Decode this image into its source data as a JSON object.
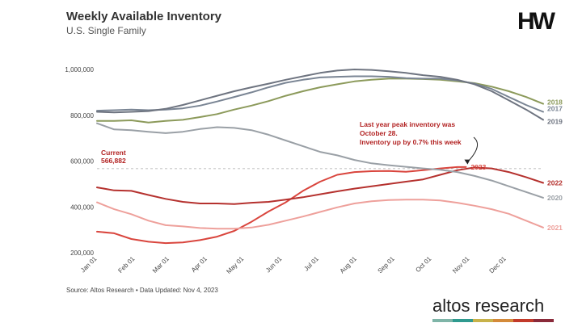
{
  "header": {
    "title": "Weekly Available Inventory",
    "subtitle": "U.S. Single Family",
    "logo": "HW"
  },
  "footer": {
    "source": "Source: Altos Research • Data Updated: Nov 4, 2023",
    "brand_word1": "altos",
    "brand_word2": "research",
    "brand_colors": [
      "#7fb5a8",
      "#2f9a8f",
      "#c8b24a",
      "#d48a3a",
      "#c23a2a",
      "#8a2a3a"
    ]
  },
  "chart_data": {
    "type": "line",
    "xlabel": "",
    "ylabel": "",
    "x_ticks": [
      "Jan 01",
      "Feb 01",
      "Mar 01",
      "Apr 01",
      "May 01",
      "Jun 01",
      "Jul 01",
      "Aug 01",
      "Sep 01",
      "Oct 01",
      "Nov 01",
      "Dec 01"
    ],
    "y_ticks": [
      "200,000",
      "400,000",
      "600,000",
      "800,000",
      "1,000,000"
    ],
    "y_tick_values": [
      200000,
      400000,
      600000,
      800000,
      1000000
    ],
    "xlim": [
      1,
      53
    ],
    "ylim": [
      200000,
      1000000
    ],
    "grid": "none",
    "reference_line": {
      "value": 566882,
      "label_line1": "Current",
      "label_line2": "566,882"
    },
    "annotation": {
      "lines": [
        "Last year peak inventory was",
        "October 28.",
        "Inventory up by 0.7% this week"
      ],
      "target_week": 44,
      "target_value": 575000
    },
    "series": [
      {
        "name": "2018",
        "color": "#8c9a5b",
        "x": [
          1,
          3,
          5,
          7,
          9,
          11,
          13,
          15,
          17,
          19,
          21,
          23,
          25,
          27,
          29,
          31,
          33,
          35,
          37,
          39,
          41,
          43,
          45,
          47,
          49,
          51,
          53
        ],
        "values": [
          775000,
          775000,
          778000,
          768000,
          775000,
          780000,
          792000,
          805000,
          825000,
          842000,
          862000,
          885000,
          905000,
          922000,
          935000,
          948000,
          955000,
          960000,
          960000,
          958000,
          955000,
          948000,
          940000,
          925000,
          905000,
          880000,
          850000
        ]
      },
      {
        "name": "2017",
        "color": "#7a8594",
        "x": [
          1,
          3,
          5,
          7,
          9,
          11,
          13,
          15,
          17,
          19,
          21,
          23,
          25,
          27,
          29,
          31,
          33,
          35,
          37,
          39,
          41,
          43,
          45,
          47,
          49,
          51,
          53
        ],
        "values": [
          820000,
          822000,
          825000,
          822000,
          825000,
          830000,
          842000,
          860000,
          880000,
          900000,
          922000,
          942000,
          955000,
          965000,
          968000,
          970000,
          970000,
          968000,
          962000,
          960000,
          960000,
          952000,
          938000,
          915000,
          880000,
          845000,
          815000
        ]
      },
      {
        "name": "2019",
        "color": "#6e7480",
        "x": [
          1,
          3,
          5,
          7,
          9,
          11,
          13,
          15,
          17,
          19,
          21,
          23,
          25,
          27,
          29,
          31,
          33,
          35,
          37,
          39,
          41,
          43,
          45,
          47,
          49,
          51,
          53
        ],
        "values": [
          815000,
          812000,
          815000,
          818000,
          828000,
          845000,
          865000,
          885000,
          905000,
          922000,
          938000,
          955000,
          970000,
          985000,
          995000,
          1000000,
          998000,
          992000,
          985000,
          975000,
          968000,
          955000,
          935000,
          905000,
          865000,
          825000,
          780000
        ]
      },
      {
        "name": "2023",
        "color": "#d9453d",
        "x": [
          1,
          3,
          5,
          7,
          9,
          11,
          13,
          15,
          17,
          19,
          21,
          23,
          25,
          27,
          29,
          31,
          33,
          35,
          37,
          39,
          41,
          43,
          44
        ],
        "values": [
          292000,
          285000,
          260000,
          248000,
          242000,
          245000,
          255000,
          270000,
          295000,
          335000,
          380000,
          420000,
          470000,
          510000,
          540000,
          552000,
          556000,
          557000,
          553000,
          560000,
          568000,
          574000,
          574000
        ]
      },
      {
        "name": "2022",
        "color": "#b5312e",
        "x": [
          1,
          3,
          5,
          7,
          9,
          11,
          13,
          15,
          17,
          19,
          21,
          23,
          25,
          27,
          29,
          31,
          33,
          35,
          37,
          39,
          41,
          43,
          45,
          47,
          49,
          51,
          53
        ],
        "values": [
          485000,
          472000,
          470000,
          452000,
          435000,
          422000,
          415000,
          415000,
          412000,
          418000,
          422000,
          432000,
          442000,
          455000,
          468000,
          480000,
          490000,
          500000,
          510000,
          520000,
          540000,
          560000,
          572000,
          568000,
          552000,
          530000,
          505000
        ]
      },
      {
        "name": "2020",
        "color": "#9aa0a6",
        "x": [
          1,
          3,
          5,
          7,
          9,
          11,
          13,
          15,
          17,
          19,
          21,
          23,
          25,
          27,
          29,
          31,
          33,
          35,
          37,
          39,
          41,
          43,
          45,
          47,
          49,
          51,
          53
        ],
        "values": [
          765000,
          738000,
          735000,
          728000,
          722000,
          728000,
          740000,
          748000,
          745000,
          735000,
          715000,
          690000,
          665000,
          640000,
          625000,
          605000,
          590000,
          582000,
          575000,
          568000,
          562000,
          552000,
          535000,
          515000,
          490000,
          465000,
          440000
        ]
      },
      {
        "name": "2021",
        "color": "#eea09b",
        "x": [
          1,
          3,
          5,
          7,
          9,
          11,
          13,
          15,
          17,
          19,
          21,
          23,
          25,
          27,
          29,
          31,
          33,
          35,
          37,
          39,
          41,
          43,
          45,
          47,
          49,
          51,
          53
        ],
        "values": [
          420000,
          390000,
          368000,
          340000,
          320000,
          315000,
          308000,
          305000,
          305000,
          310000,
          322000,
          340000,
          358000,
          378000,
          398000,
          415000,
          425000,
          430000,
          432000,
          432000,
          428000,
          418000,
          405000,
          390000,
          370000,
          340000,
          310000
        ]
      }
    ]
  }
}
